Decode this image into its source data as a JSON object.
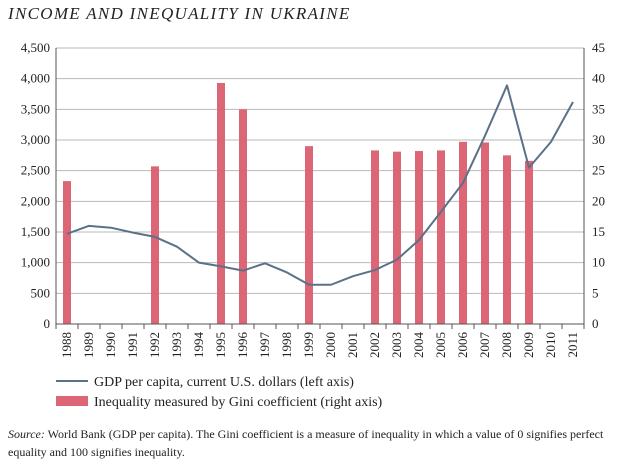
{
  "title": "INCOME AND INEQUALITY IN UKRAINE",
  "source_label": "Source:",
  "source_text": "World Bank (GDP per capita). The Gini coefficient is a measure of inequality in which a value of 0 signifies perfect equality and 100 signifies inequality.",
  "colors": {
    "line": "#5b7187",
    "bar": "#dc6676",
    "axis": "#555555",
    "grid": "#b8b8b8"
  },
  "chart_data": {
    "type": "bar",
    "categories": [
      "1988",
      "1989",
      "1990",
      "1991",
      "1992",
      "1993",
      "1994",
      "1995",
      "1996",
      "1997",
      "1998",
      "1999",
      "2000",
      "2001",
      "2002",
      "2003",
      "2004",
      "2005",
      "2006",
      "2007",
      "2008",
      "2009",
      "2010",
      "2011"
    ],
    "series": [
      {
        "name": "GDP per capita, current U.S. dollars (left axis)",
        "type": "line",
        "axis": "left",
        "values": [
          null,
          1600,
          1570,
          1490,
          1420,
          1260,
          1000,
          940,
          870,
          990,
          840,
          640,
          640,
          780,
          880,
          1050,
          1370,
          1830,
          2300,
          3070,
          3890,
          2550,
          2970,
          3620
        ]
      },
      {
        "name": "Inequality measured by Gini coefficient (right axis)",
        "type": "bar",
        "axis": "right",
        "values": [
          23.3,
          null,
          null,
          null,
          25.7,
          null,
          null,
          39.3,
          35.0,
          null,
          null,
          29.0,
          null,
          null,
          28.3,
          28.1,
          28.2,
          28.3,
          29.7,
          29.6,
          27.5,
          26.6,
          null,
          null
        ]
      }
    ],
    "y_left": {
      "ylim": [
        0,
        4500
      ],
      "ticks": [
        "0",
        "500",
        "1,000",
        "1,500",
        "2,000",
        "2,500",
        "3,000",
        "3,500",
        "4,000",
        "4,500"
      ]
    },
    "y_right": {
      "ylim": [
        0,
        45
      ],
      "ticks": [
        "0",
        "5",
        "10",
        "15",
        "20",
        "25",
        "30",
        "35",
        "40",
        "45"
      ]
    },
    "gdp_1988_estimate": 1470,
    "grid": true,
    "legend_position": "bottom"
  }
}
